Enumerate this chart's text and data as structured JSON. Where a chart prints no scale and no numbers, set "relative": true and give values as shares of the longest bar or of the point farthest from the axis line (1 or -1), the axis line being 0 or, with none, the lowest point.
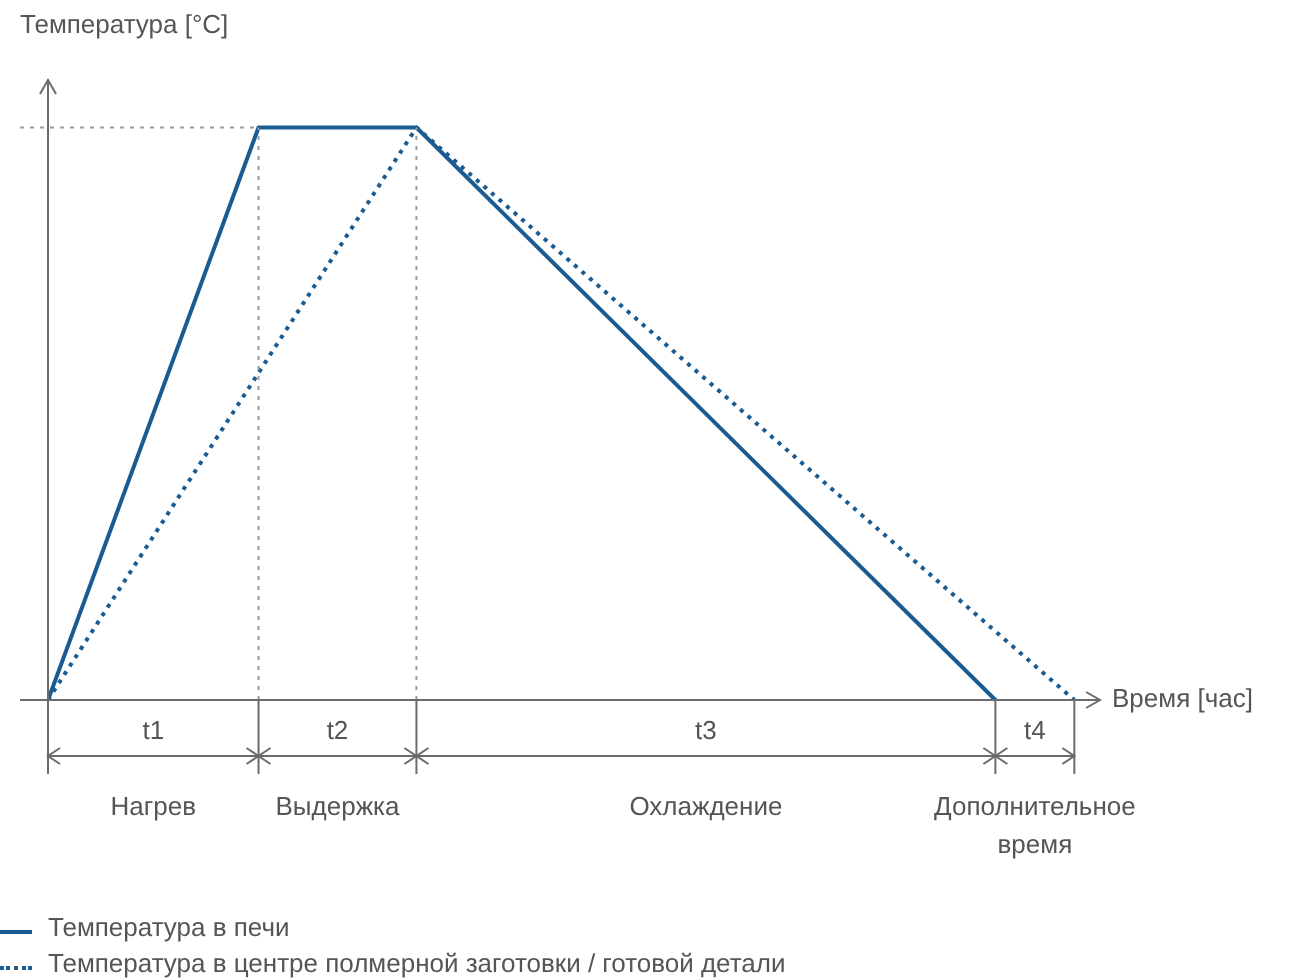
{
  "chart_data": {
    "type": "line",
    "relative": true,
    "legend": "bottom left",
    "marker": "none",
    "ylabel": "Температура [°C]",
    "xlabel": "Время [час]",
    "categories": [
      null,
      null,
      null,
      null,
      null,
      null,
      null,
      null,
      null,
      null,
      null,
      null,
      null,
      null,
      null,
      null,
      null,
      null,
      null,
      null,
      null,
      null,
      null,
      null,
      null,
      null,
      null,
      null,
      null,
      null,
      null,
      null,
      null,
      null,
      null,
      null,
      null,
      null,
      null,
      null
    ],
    "series": [
      {
        "name": "Температура в печи",
        "color": "#1a5b92",
        "line_style": "solid",
        "values": [
          0,
          null,
          null,
          null,
          null,
          null,
          null,
          null,
          1,
          null,
          null,
          null,
          null,
          null,
          1,
          null,
          null,
          null,
          null,
          null,
          null,
          null,
          null,
          null,
          null,
          null,
          null,
          null,
          null,
          null,
          null,
          null,
          null,
          null,
          null,
          null,
          0,
          null,
          null,
          null
        ]
      },
      {
        "name": "Температура в центре полмерной заготовки / готовой детали",
        "color": "#1a5b92",
        "line_style": "dotted",
        "values": [
          0,
          null,
          null,
          null,
          null,
          null,
          null,
          null,
          null,
          null,
          null,
          null,
          null,
          null,
          1,
          null,
          null,
          null,
          null,
          null,
          null,
          null,
          null,
          null,
          null,
          null,
          null,
          null,
          null,
          null,
          null,
          null,
          null,
          null,
          null,
          null,
          null,
          null,
          null,
          0
        ]
      }
    ],
    "annotations": [
      "t1",
      "t2",
      "t3",
      "t4",
      "Нагрев",
      "Выдержка",
      "Охлаждение",
      "Дополнительное время"
    ]
  }
}
